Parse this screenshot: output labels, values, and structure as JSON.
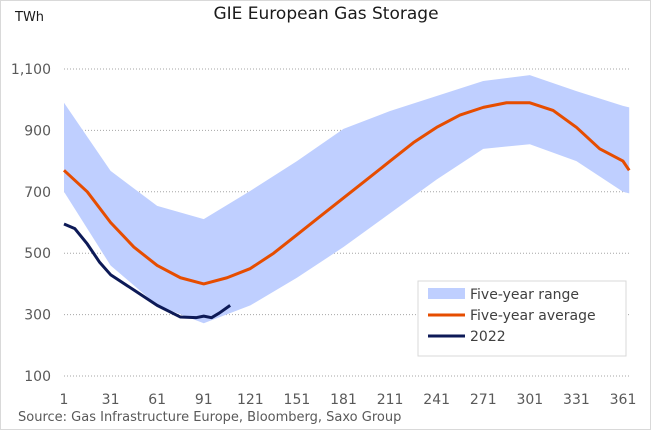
{
  "chart_data": {
    "type": "area",
    "title": "GIE European Gas Storage",
    "ylabel": "TWh",
    "xlabel": "",
    "source": "Source: Gas Infrastructure Europe, Bloomberg, Saxo Group",
    "ylim": [
      100,
      1100
    ],
    "xlim": [
      1,
      365
    ],
    "yticks": [
      100,
      300,
      500,
      700,
      900,
      1100
    ],
    "ytick_labels": [
      "100",
      "300",
      "500",
      "700",
      "900",
      "1,100"
    ],
    "xticks": [
      1,
      31,
      61,
      91,
      121,
      151,
      181,
      211,
      241,
      271,
      301,
      331,
      361
    ],
    "xtick_labels": [
      "1",
      "31",
      "61",
      "91",
      "121",
      "151",
      "181",
      "211",
      "241",
      "271",
      "301",
      "331",
      "361"
    ],
    "grid": "horizontal dotted",
    "legend_position": "bottom-right",
    "colors": {
      "range": "#bfcfff",
      "average": "#e64d00",
      "y2022": "#0d1a57"
    },
    "series": [
      {
        "name": "Five-year range",
        "type": "band",
        "x": [
          1,
          31,
          61,
          91,
          121,
          151,
          181,
          211,
          241,
          271,
          301,
          331,
          361,
          365
        ],
        "upper": [
          990,
          768,
          654,
          611,
          703,
          800,
          905,
          963,
          1012,
          1061,
          1080,
          1028,
          980,
          975
        ],
        "lower": [
          700,
          460,
          330,
          272,
          330,
          420,
          520,
          630,
          740,
          840,
          855,
          800,
          700,
          695
        ]
      },
      {
        "name": "Five-year average",
        "type": "line",
        "x": [
          1,
          16,
          31,
          46,
          61,
          76,
          91,
          106,
          121,
          136,
          151,
          166,
          181,
          196,
          211,
          226,
          241,
          256,
          271,
          286,
          301,
          316,
          331,
          346,
          361,
          365
        ],
        "values": [
          770,
          700,
          600,
          520,
          460,
          420,
          400,
          420,
          450,
          500,
          560,
          620,
          680,
          740,
          800,
          860,
          910,
          950,
          975,
          990,
          990,
          965,
          910,
          840,
          800,
          770
        ]
      },
      {
        "name": "2022",
        "type": "line",
        "x": [
          1,
          8,
          16,
          24,
          31,
          46,
          61,
          76,
          86,
          91,
          96,
          101,
          108
        ],
        "values": [
          595,
          580,
          530,
          470,
          430,
          380,
          330,
          292,
          290,
          295,
          290,
          305,
          330
        ]
      }
    ]
  }
}
